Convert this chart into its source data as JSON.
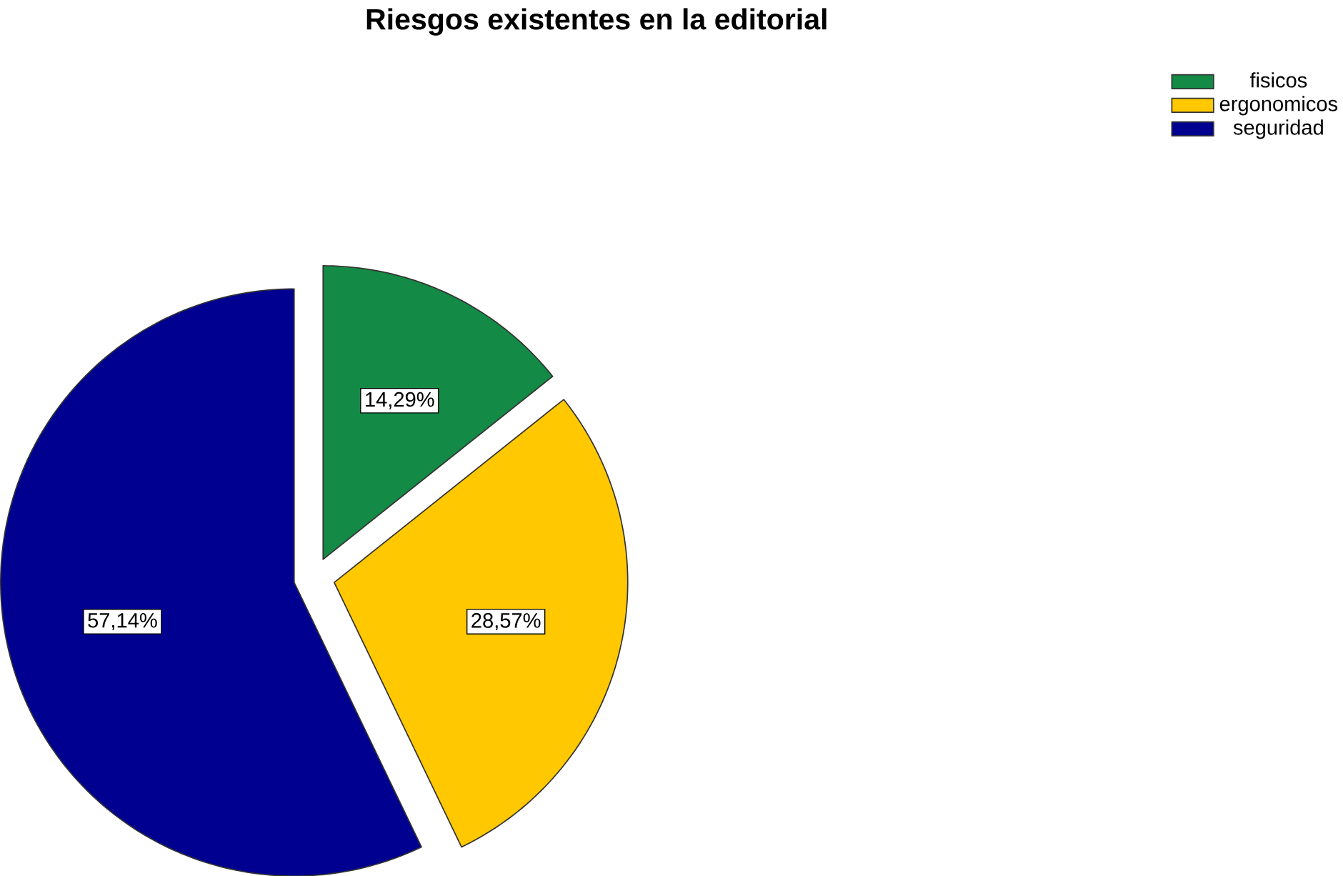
{
  "chart_data": {
    "type": "pie",
    "title": "Riesgos existentes en la editorial",
    "categories": [
      "fisicos",
      "ergonomicos",
      "seguridad"
    ],
    "values": [
      14.29,
      28.57,
      57.14
    ],
    "value_labels": [
      "14,29%",
      "28,57%",
      "57,14%"
    ],
    "colors": [
      "#138a45",
      "#ffc800",
      "#000090"
    ],
    "legend": "top right"
  }
}
